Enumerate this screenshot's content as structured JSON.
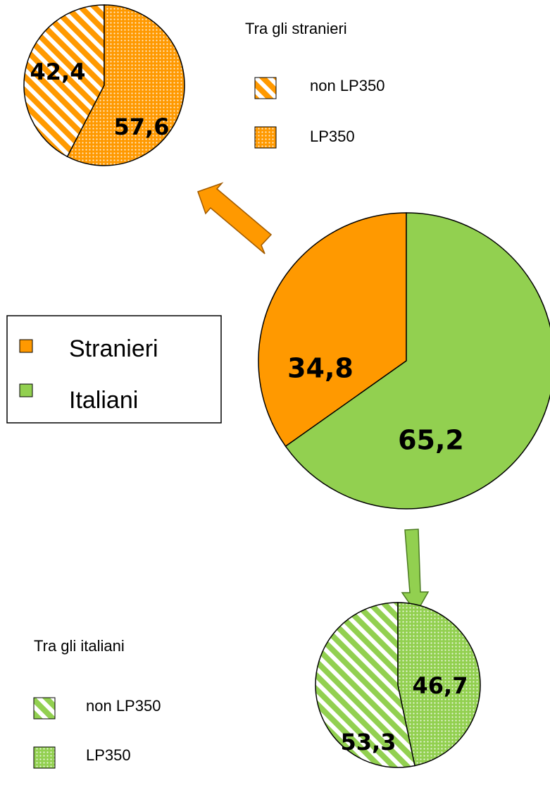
{
  "chart_data": [
    {
      "type": "pie",
      "categories": [
        "Stranieri",
        "Italiani"
      ],
      "values": [
        34.8,
        65.2
      ],
      "value_labels": [
        "34,8",
        "65,2"
      ],
      "colors": [
        "#FF9900",
        "#92D050"
      ]
    },
    {
      "type": "pie",
      "title": "Tra gli stranieri",
      "categories": [
        "non LP350",
        "LP350"
      ],
      "values": [
        42.4,
        57.6
      ],
      "value_labels": [
        "42,4",
        "57,6"
      ],
      "color": "#FF9900",
      "patterns": [
        "stripes",
        "dots"
      ]
    },
    {
      "type": "pie",
      "title": "Tra gli italiani",
      "categories": [
        "non LP350",
        "LP350"
      ],
      "values": [
        53.3,
        46.7
      ],
      "value_labels": [
        "53,3",
        "46,7"
      ],
      "color": "#92D050",
      "patterns": [
        "stripes",
        "dots"
      ]
    }
  ]
}
